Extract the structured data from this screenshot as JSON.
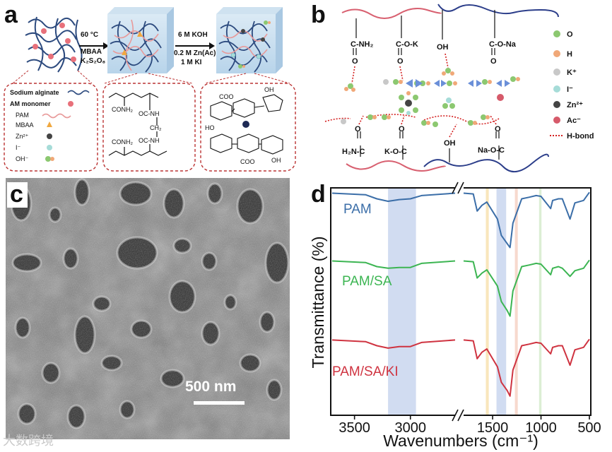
{
  "panels": {
    "a": {
      "label": "a",
      "step1": [
        "60 °C",
        "MBAA",
        "K₂S₂O₈"
      ],
      "step2": [
        "6 M KOH",
        "0.2 M Zn(Ac)₂",
        "1 M KI"
      ],
      "legend": [
        "Sodium alginate",
        "AM monomer",
        "PAM",
        "MBAA",
        "Zn²⁺",
        "I⁻",
        "OH⁻"
      ],
      "crosslink": [
        "CONH₂",
        "OC-NH",
        "CH₂",
        "CONH₂",
        "OC-NH"
      ],
      "alginate": [
        "COO",
        "HO",
        "OH",
        "COO",
        "OH"
      ]
    },
    "b": {
      "label": "b",
      "top_groups": [
        "C-NH₂",
        "C-O-K",
        "OH",
        "C-O-Na"
      ],
      "bottom_groups": [
        "H₂N-C",
        "K-O-C",
        "OH",
        "Na-O-C"
      ],
      "carbonyl": "O",
      "legend": [
        "O",
        "H",
        "K⁺",
        "I⁻",
        "Zn²⁺",
        "Ac⁻",
        "H-bond"
      ],
      "colors": {
        "O": "#8cc870",
        "H": "#f0a878",
        "K": "#c8c8c8",
        "I": "#a6dcd8",
        "Zn": "#444444",
        "Ac": "#d65a6a",
        "hbond": "#d42020",
        "pink_chain": "#d86070",
        "blue_chain": "#2c3e8a"
      }
    },
    "c": {
      "label": "c",
      "scale_bar": "500 nm"
    },
    "d": {
      "label": "d",
      "ylabel": "Transmittance (%)",
      "xlabel": "Wavenumbers (cm⁻¹)",
      "x_ticks": [
        "3500",
        "3000",
        "1500",
        "1000",
        "500"
      ]
    }
  },
  "chart_data": {
    "type": "line",
    "xlabel": "Wavenumbers (cm⁻¹)",
    "ylabel": "Transmittance (%)",
    "x_axis": "reversed, broken between 2600 and 1800",
    "xlim_left_segment": [
      3700,
      2600
    ],
    "xlim_right_segment": [
      1800,
      500
    ],
    "x_ticks": [
      3500,
      3000,
      1500,
      1000,
      500
    ],
    "highlight_bands": [
      {
        "range": [
          3200,
          2950
        ],
        "color": "#c9d6ee"
      },
      {
        "range": [
          1570,
          1540
        ],
        "color": "#f8e2b0"
      },
      {
        "range": [
          1460,
          1360
        ],
        "color": "#c9d6ee"
      },
      {
        "range": [
          1270,
          1240
        ],
        "color": "#f6d2c6"
      },
      {
        "range": [
          1020,
          995
        ],
        "color": "#d6ebcc"
      }
    ],
    "series": [
      {
        "name": "PAM",
        "color": "#3b6ea8",
        "values": [
          [
            3700,
            0.97
          ],
          [
            3400,
            0.95
          ],
          [
            3300,
            0.9
          ],
          [
            3200,
            0.87
          ],
          [
            3100,
            0.89
          ],
          [
            3000,
            0.9
          ],
          [
            2900,
            0.94
          ],
          [
            2600,
            0.97
          ],
          [
            1800,
            0.97
          ],
          [
            1700,
            0.96
          ],
          [
            1660,
            0.75
          ],
          [
            1610,
            0.82
          ],
          [
            1560,
            0.86
          ],
          [
            1450,
            0.65
          ],
          [
            1410,
            0.45
          ],
          [
            1350,
            0.35
          ],
          [
            1320,
            0.3
          ],
          [
            1290,
            0.6
          ],
          [
            1200,
            0.9
          ],
          [
            1120,
            0.92
          ],
          [
            1050,
            0.94
          ],
          [
            1000,
            0.93
          ],
          [
            900,
            0.78
          ],
          [
            880,
            0.88
          ],
          [
            820,
            0.9
          ],
          [
            780,
            0.9
          ],
          [
            700,
            0.65
          ],
          [
            650,
            0.85
          ],
          [
            560,
            0.88
          ],
          [
            500,
            0.98
          ]
        ]
      },
      {
        "name": "PAM/SA",
        "color": "#3cb552",
        "values": [
          [
            3700,
            0.97
          ],
          [
            3400,
            0.95
          ],
          [
            3300,
            0.9
          ],
          [
            3200,
            0.88
          ],
          [
            3100,
            0.89
          ],
          [
            3000,
            0.89
          ],
          [
            2900,
            0.94
          ],
          [
            2600,
            0.97
          ],
          [
            1800,
            0.97
          ],
          [
            1700,
            0.96
          ],
          [
            1660,
            0.76
          ],
          [
            1610,
            0.82
          ],
          [
            1560,
            0.86
          ],
          [
            1450,
            0.66
          ],
          [
            1410,
            0.47
          ],
          [
            1350,
            0.36
          ],
          [
            1320,
            0.29
          ],
          [
            1290,
            0.6
          ],
          [
            1200,
            0.9
          ],
          [
            1120,
            0.92
          ],
          [
            1050,
            0.94
          ],
          [
            1000,
            0.93
          ],
          [
            900,
            0.8
          ],
          [
            880,
            0.88
          ],
          [
            820,
            0.9
          ],
          [
            780,
            0.88
          ],
          [
            700,
            0.78
          ],
          [
            650,
            0.85
          ],
          [
            560,
            0.88
          ],
          [
            500,
            0.98
          ]
        ]
      },
      {
        "name": "PAM/SA/KI",
        "color": "#cf3340",
        "values": [
          [
            3700,
            0.97
          ],
          [
            3400,
            0.95
          ],
          [
            3300,
            0.9
          ],
          [
            3200,
            0.87
          ],
          [
            3100,
            0.89
          ],
          [
            3000,
            0.89
          ],
          [
            2900,
            0.94
          ],
          [
            2600,
            0.97
          ],
          [
            1800,
            0.97
          ],
          [
            1700,
            0.96
          ],
          [
            1660,
            0.74
          ],
          [
            1610,
            0.82
          ],
          [
            1560,
            0.86
          ],
          [
            1450,
            0.64
          ],
          [
            1410,
            0.45
          ],
          [
            1350,
            0.35
          ],
          [
            1320,
            0.28
          ],
          [
            1290,
            0.6
          ],
          [
            1200,
            0.9
          ],
          [
            1120,
            0.92
          ],
          [
            1050,
            0.94
          ],
          [
            1000,
            0.93
          ],
          [
            900,
            0.8
          ],
          [
            880,
            0.88
          ],
          [
            820,
            0.9
          ],
          [
            780,
            0.9
          ],
          [
            700,
            0.66
          ],
          [
            650,
            0.85
          ],
          [
            560,
            0.88
          ],
          [
            500,
            0.98
          ]
        ]
      }
    ]
  },
  "watermark": "大数跨境"
}
